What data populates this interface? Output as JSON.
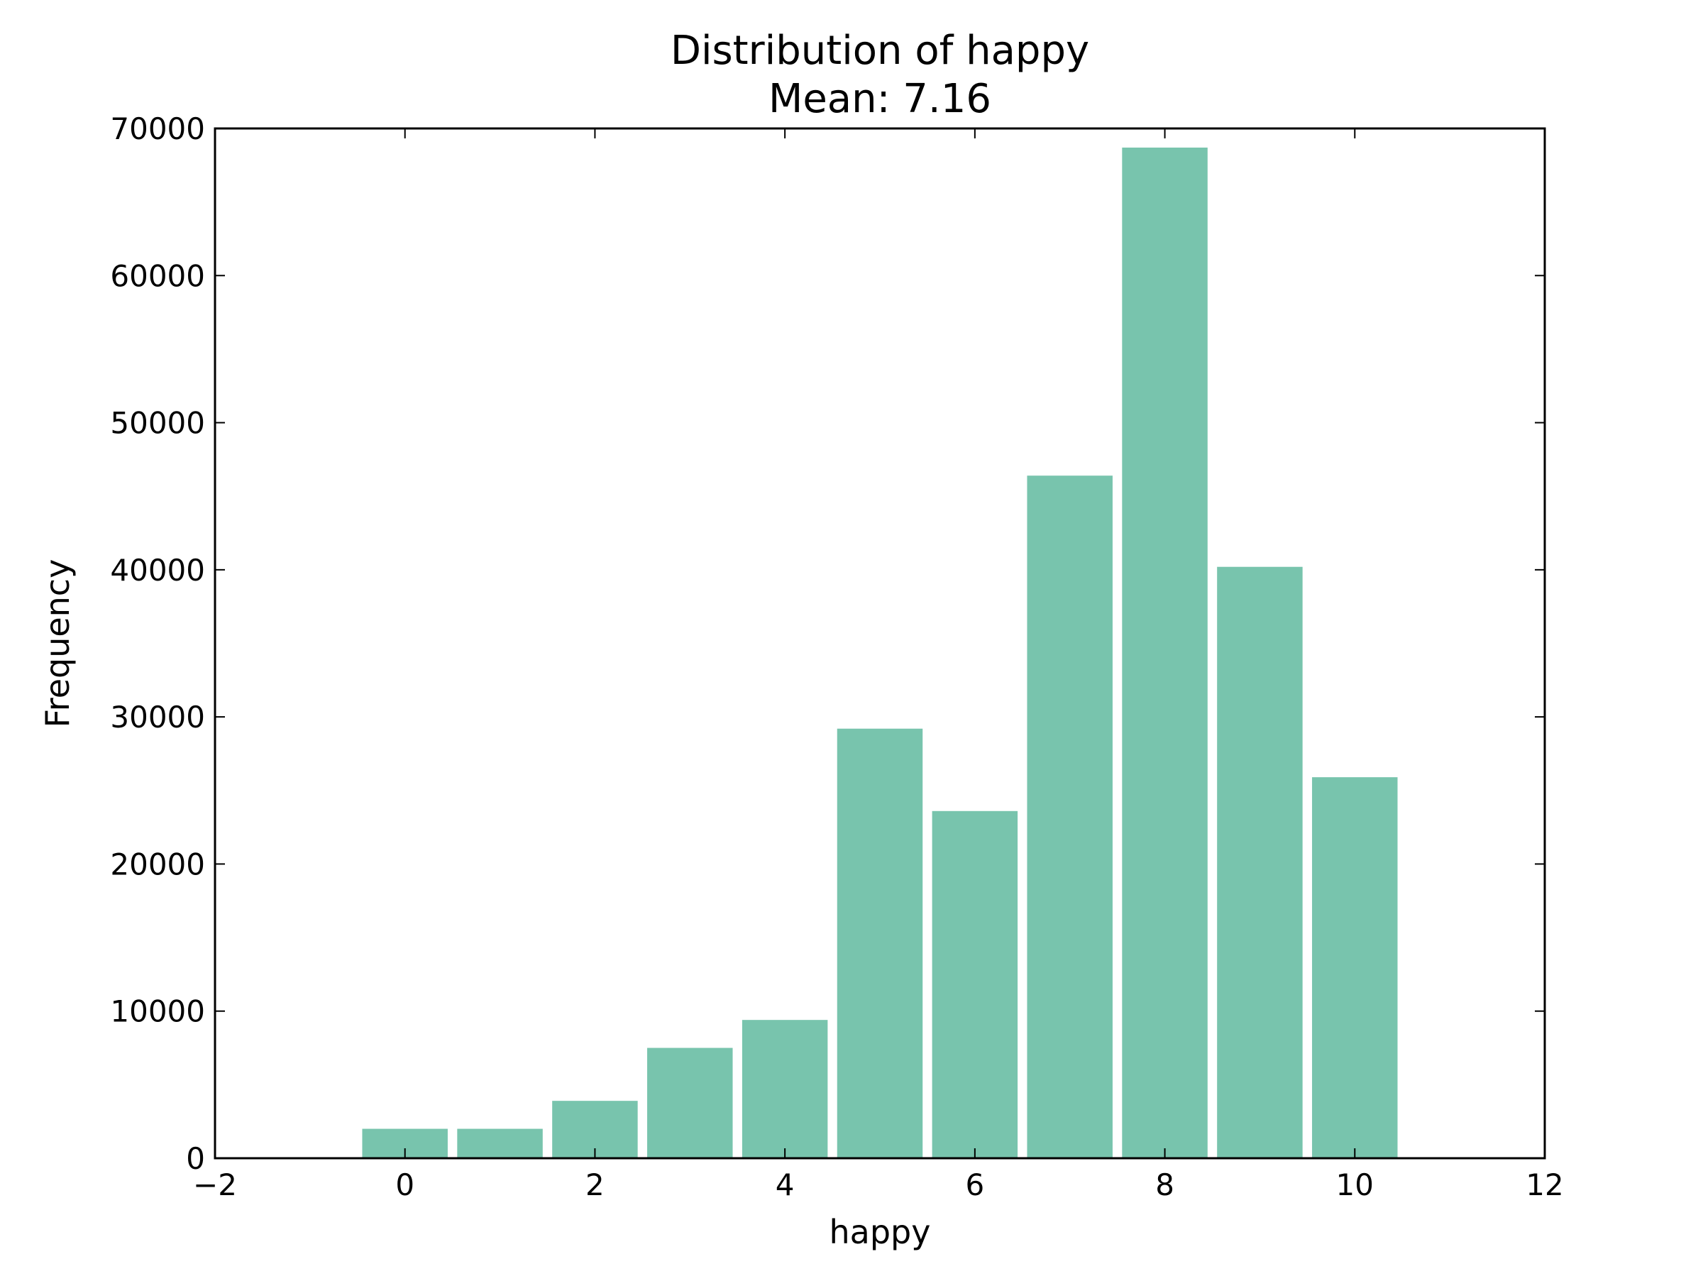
{
  "chart_data": {
    "type": "bar",
    "title": "Distribution of happy",
    "subtitle": "Mean: 7.16",
    "xlabel": "happy",
    "ylabel": "Frequency",
    "xlim": [
      -2,
      12
    ],
    "ylim": [
      0,
      70000
    ],
    "x_ticks": [
      -2,
      0,
      2,
      4,
      6,
      8,
      10,
      12
    ],
    "x_tick_labels": [
      "−2",
      "0",
      "2",
      "4",
      "6",
      "8",
      "10",
      "12"
    ],
    "y_ticks": [
      0,
      10000,
      20000,
      30000,
      40000,
      50000,
      60000,
      70000
    ],
    "y_tick_labels": [
      "0",
      "10000",
      "20000",
      "30000",
      "40000",
      "50000",
      "60000",
      "70000"
    ],
    "bar_width": 0.9,
    "x": [
      0,
      1,
      2,
      3,
      4,
      5,
      6,
      7,
      8,
      9,
      10
    ],
    "values": [
      2000,
      2000,
      3900,
      7500,
      9400,
      29200,
      23600,
      46400,
      68700,
      40200,
      25900
    ],
    "grid": false,
    "bar_color": "#78c4ad",
    "axis_color": "#000000"
  }
}
